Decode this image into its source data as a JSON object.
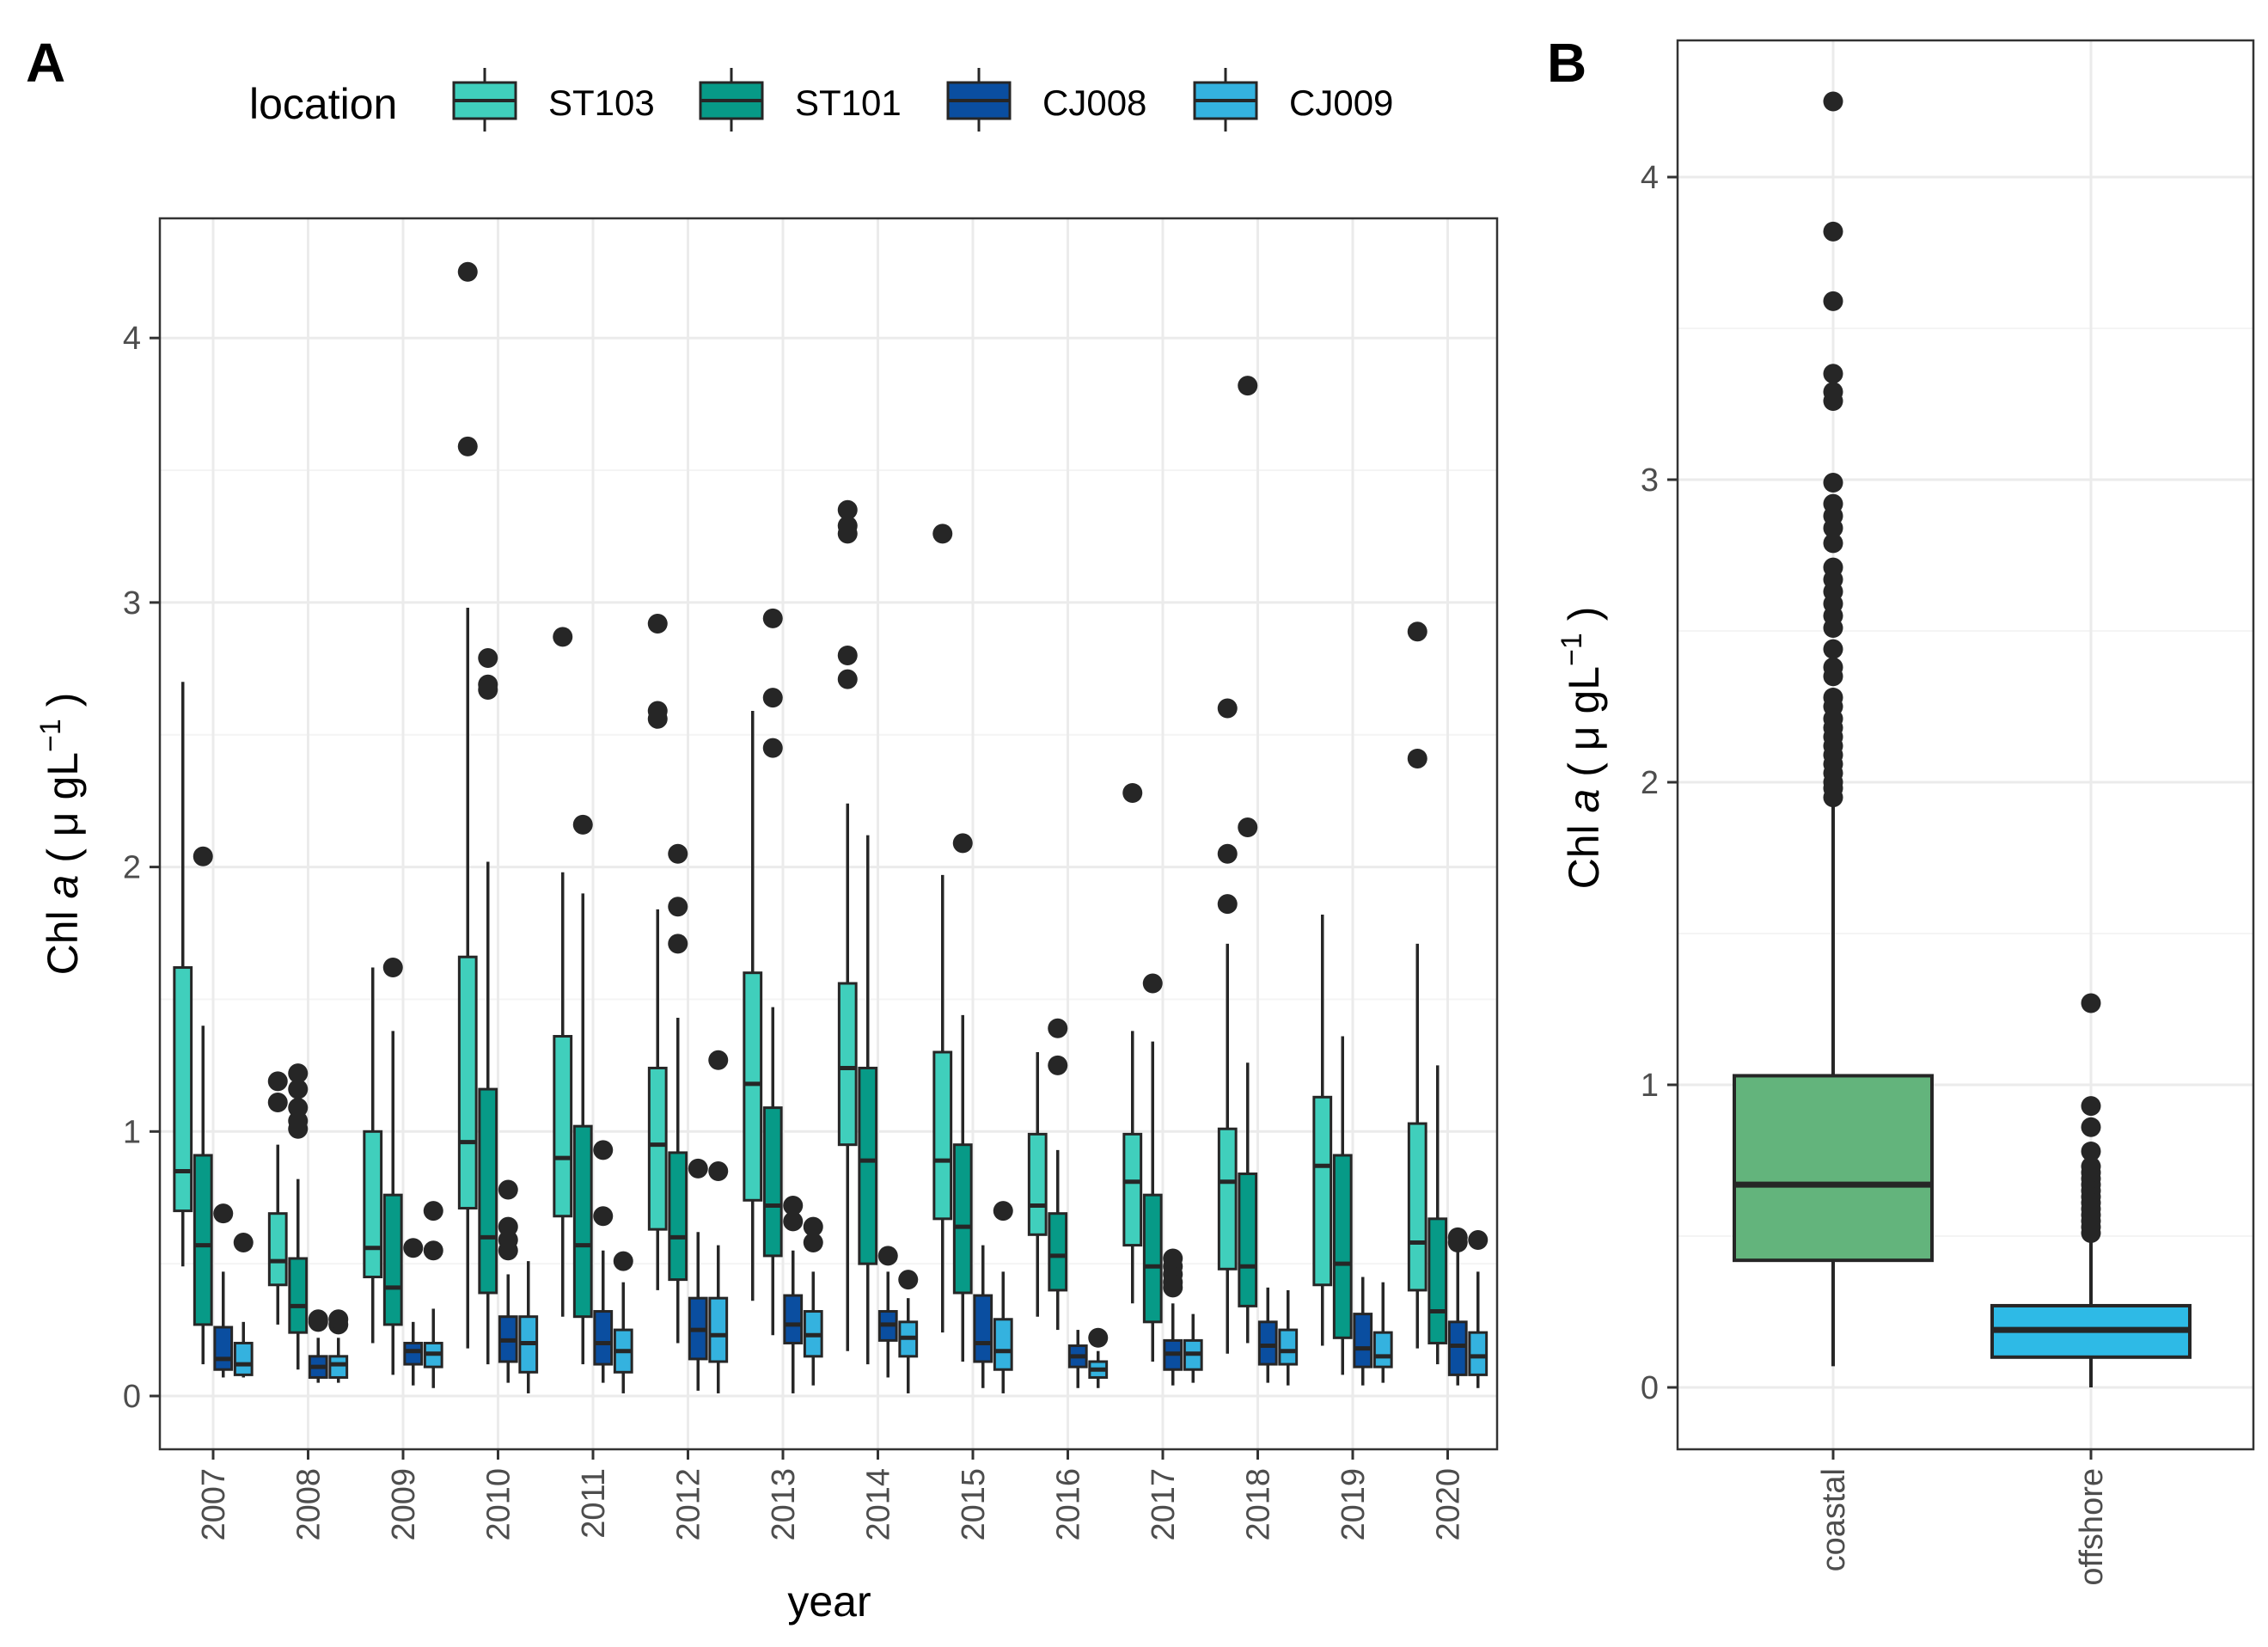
{
  "panels": {
    "a": {
      "letter": "A"
    },
    "b": {
      "letter": "B"
    }
  },
  "legend": {
    "title": "location",
    "entries": [
      {
        "label": "ST103",
        "color": "#40CFBC"
      },
      {
        "label": "ST101",
        "color": "#079A87"
      },
      {
        "label": "CJ008",
        "color": "#0A4EA0"
      },
      {
        "label": "CJ009",
        "color": "#34B2DF"
      }
    ]
  },
  "colors": {
    "outline": "#262626",
    "point": "#262626",
    "grid_major": "#EBEBEB",
    "grid_minor": "#F4F4F4",
    "coastal": "#63B47C",
    "offshore": "#2EBAE6"
  },
  "chart_data": [
    {
      "type": "boxplot",
      "panel": "A",
      "xlabel": "year",
      "ylabel_prefix": "Chl ",
      "ylabel_italic": "a",
      "ylabel_suffix": " ( μ gL",
      "ylabel_sup": "−1",
      "ylabel_close": " )",
      "ylim": [
        -0.2,
        4.45
      ],
      "y_ticks": [
        "0",
        "1",
        "2",
        "3",
        "4"
      ],
      "categories": [
        "2007",
        "2008",
        "2009",
        "2010",
        "2011",
        "2012",
        "2013",
        "2014",
        "2015",
        "2016",
        "2017",
        "2018",
        "2019",
        "2020"
      ],
      "series_order": [
        "ST103",
        "ST101",
        "CJ008",
        "CJ009"
      ],
      "boxes": [
        [
          {
            "series": "ST103",
            "min": 0.49,
            "q1": 0.7,
            "median": 0.85,
            "q3": 1.62,
            "max": 2.7,
            "outliers": []
          },
          {
            "series": "ST101",
            "min": 0.12,
            "q1": 0.27,
            "median": 0.57,
            "q3": 0.91,
            "max": 1.4,
            "outliers": [
              2.04
            ]
          },
          {
            "series": "CJ008",
            "min": 0.07,
            "q1": 0.1,
            "median": 0.14,
            "q3": 0.26,
            "max": 0.47,
            "outliers": [
              0.69
            ]
          },
          {
            "series": "CJ009",
            "min": 0.07,
            "q1": 0.08,
            "median": 0.12,
            "q3": 0.2,
            "max": 0.28,
            "outliers": [
              0.58
            ]
          }
        ],
        [
          {
            "series": "ST103",
            "min": 0.27,
            "q1": 0.42,
            "median": 0.51,
            "q3": 0.69,
            "max": 0.95,
            "outliers": [
              1.11,
              1.19
            ]
          },
          {
            "series": "ST101",
            "min": 0.1,
            "q1": 0.24,
            "median": 0.34,
            "q3": 0.52,
            "max": 0.82,
            "outliers": [
              1.01,
              1.04,
              1.09,
              1.16,
              1.22
            ]
          },
          {
            "series": "CJ008",
            "min": 0.05,
            "q1": 0.07,
            "median": 0.11,
            "q3": 0.15,
            "max": 0.22,
            "outliers": [
              0.28,
              0.29
            ]
          },
          {
            "series": "CJ009",
            "min": 0.05,
            "q1": 0.07,
            "median": 0.12,
            "q3": 0.15,
            "max": 0.22,
            "outliers": [
              0.27,
              0.29
            ]
          }
        ],
        [
          {
            "series": "ST103",
            "min": 0.2,
            "q1": 0.45,
            "median": 0.56,
            "q3": 1.0,
            "max": 1.62,
            "outliers": []
          },
          {
            "series": "ST101",
            "min": 0.08,
            "q1": 0.27,
            "median": 0.41,
            "q3": 0.76,
            "max": 1.38,
            "outliers": [
              1.62
            ]
          },
          {
            "series": "CJ008",
            "min": 0.04,
            "q1": 0.12,
            "median": 0.17,
            "q3": 0.2,
            "max": 0.28,
            "outliers": [
              0.56
            ]
          },
          {
            "series": "CJ009",
            "min": 0.03,
            "q1": 0.11,
            "median": 0.16,
            "q3": 0.2,
            "max": 0.33,
            "outliers": [
              0.55,
              0.7
            ]
          }
        ],
        [
          {
            "series": "ST103",
            "min": 0.18,
            "q1": 0.71,
            "median": 0.96,
            "q3": 1.66,
            "max": 2.98,
            "outliers": [
              3.59,
              4.25
            ]
          },
          {
            "series": "ST101",
            "min": 0.12,
            "q1": 0.39,
            "median": 0.6,
            "q3": 1.16,
            "max": 2.02,
            "outliers": [
              2.67,
              2.69,
              2.79
            ]
          },
          {
            "series": "CJ008",
            "min": 0.05,
            "q1": 0.13,
            "median": 0.21,
            "q3": 0.3,
            "max": 0.46,
            "outliers": [
              0.55,
              0.59,
              0.64,
              0.78
            ]
          },
          {
            "series": "CJ009",
            "min": 0.01,
            "q1": 0.09,
            "median": 0.2,
            "q3": 0.3,
            "max": 0.51,
            "outliers": []
          }
        ],
        [
          {
            "series": "ST103",
            "min": 0.3,
            "q1": 0.68,
            "median": 0.9,
            "q3": 1.36,
            "max": 1.98,
            "outliers": [
              2.87
            ]
          },
          {
            "series": "ST101",
            "min": 0.12,
            "q1": 0.3,
            "median": 0.57,
            "q3": 1.02,
            "max": 1.9,
            "outliers": [
              2.16
            ]
          },
          {
            "series": "CJ008",
            "min": 0.05,
            "q1": 0.12,
            "median": 0.2,
            "q3": 0.32,
            "max": 0.55,
            "outliers": [
              0.68,
              0.93
            ]
          },
          {
            "series": "CJ009",
            "min": 0.01,
            "q1": 0.09,
            "median": 0.17,
            "q3": 0.25,
            "max": 0.43,
            "outliers": [
              0.51
            ]
          }
        ],
        [
          {
            "series": "ST103",
            "min": 0.4,
            "q1": 0.63,
            "median": 0.95,
            "q3": 1.24,
            "max": 1.84,
            "outliers": [
              2.56,
              2.59,
              2.92
            ]
          },
          {
            "series": "ST101",
            "min": 0.2,
            "q1": 0.44,
            "median": 0.6,
            "q3": 0.92,
            "max": 1.43,
            "outliers": [
              1.71,
              1.85,
              2.05
            ]
          },
          {
            "series": "CJ008",
            "min": 0.02,
            "q1": 0.14,
            "median": 0.25,
            "q3": 0.37,
            "max": 0.62,
            "outliers": [
              0.86
            ]
          },
          {
            "series": "CJ009",
            "min": 0.01,
            "q1": 0.13,
            "median": 0.23,
            "q3": 0.37,
            "max": 0.57,
            "outliers": [
              0.85,
              1.27
            ]
          }
        ],
        [
          {
            "series": "ST103",
            "min": 0.36,
            "q1": 0.74,
            "median": 1.18,
            "q3": 1.6,
            "max": 2.59,
            "outliers": []
          },
          {
            "series": "ST101",
            "min": 0.23,
            "q1": 0.53,
            "median": 0.72,
            "q3": 1.09,
            "max": 1.47,
            "outliers": [
              2.45,
              2.64,
              2.94
            ]
          },
          {
            "series": "CJ008",
            "min": 0.01,
            "q1": 0.2,
            "median": 0.27,
            "q3": 0.38,
            "max": 0.55,
            "outliers": [
              0.66,
              0.72
            ]
          },
          {
            "series": "CJ009",
            "min": 0.04,
            "q1": 0.15,
            "median": 0.23,
            "q3": 0.32,
            "max": 0.47,
            "outliers": [
              0.58,
              0.64
            ]
          }
        ],
        [
          {
            "series": "ST103",
            "min": 0.17,
            "q1": 0.95,
            "median": 1.24,
            "q3": 1.56,
            "max": 2.24,
            "outliers": [
              2.71,
              2.8,
              3.26,
              3.29,
              3.35
            ]
          },
          {
            "series": "ST101",
            "min": 0.12,
            "q1": 0.5,
            "median": 0.89,
            "q3": 1.24,
            "max": 2.12,
            "outliers": []
          },
          {
            "series": "CJ008",
            "min": 0.07,
            "q1": 0.21,
            "median": 0.27,
            "q3": 0.32,
            "max": 0.47,
            "outliers": [
              0.53
            ]
          },
          {
            "series": "CJ009",
            "min": 0.01,
            "q1": 0.15,
            "median": 0.22,
            "q3": 0.28,
            "max": 0.37,
            "outliers": [
              0.44
            ]
          }
        ],
        [
          {
            "series": "ST103",
            "min": 0.24,
            "q1": 0.67,
            "median": 0.89,
            "q3": 1.3,
            "max": 1.97,
            "outliers": [
              3.26
            ]
          },
          {
            "series": "ST101",
            "min": 0.13,
            "q1": 0.39,
            "median": 0.64,
            "q3": 0.95,
            "max": 1.44,
            "outliers": [
              2.09
            ]
          },
          {
            "series": "CJ008",
            "min": 0.03,
            "q1": 0.13,
            "median": 0.2,
            "q3": 0.38,
            "max": 0.57,
            "outliers": []
          },
          {
            "series": "CJ009",
            "min": 0.01,
            "q1": 0.1,
            "median": 0.17,
            "q3": 0.29,
            "max": 0.47,
            "outliers": [
              0.7
            ]
          }
        ],
        [
          {
            "series": "ST103",
            "min": 0.3,
            "q1": 0.61,
            "median": 0.72,
            "q3": 0.99,
            "max": 1.3,
            "outliers": []
          },
          {
            "series": "ST101",
            "min": 0.25,
            "q1": 0.4,
            "median": 0.53,
            "q3": 0.69,
            "max": 0.93,
            "outliers": [
              1.25,
              1.39
            ]
          },
          {
            "series": "CJ008",
            "min": 0.03,
            "q1": 0.11,
            "median": 0.15,
            "q3": 0.19,
            "max": 0.25,
            "outliers": []
          },
          {
            "series": "CJ009",
            "min": 0.03,
            "q1": 0.07,
            "median": 0.1,
            "q3": 0.13,
            "max": 0.17,
            "outliers": [
              0.22
            ]
          }
        ],
        [
          {
            "series": "ST103",
            "min": 0.35,
            "q1": 0.57,
            "median": 0.81,
            "q3": 0.99,
            "max": 1.38,
            "outliers": [
              2.28
            ]
          },
          {
            "series": "ST101",
            "min": 0.13,
            "q1": 0.28,
            "median": 0.49,
            "q3": 0.76,
            "max": 1.34,
            "outliers": [
              1.56
            ]
          },
          {
            "series": "CJ008",
            "min": 0.04,
            "q1": 0.1,
            "median": 0.16,
            "q3": 0.21,
            "max": 0.35,
            "outliers": [
              0.41,
              0.43,
              0.46,
              0.49,
              0.52
            ]
          },
          {
            "series": "CJ009",
            "min": 0.05,
            "q1": 0.1,
            "median": 0.16,
            "q3": 0.21,
            "max": 0.31,
            "outliers": []
          }
        ],
        [
          {
            "series": "ST103",
            "min": 0.16,
            "q1": 0.48,
            "median": 0.81,
            "q3": 1.01,
            "max": 1.71,
            "outliers": [
              1.86,
              2.05,
              2.6
            ]
          },
          {
            "series": "ST101",
            "min": 0.2,
            "q1": 0.34,
            "median": 0.49,
            "q3": 0.84,
            "max": 1.26,
            "outliers": [
              2.15,
              3.82
            ]
          },
          {
            "series": "CJ008",
            "min": 0.05,
            "q1": 0.12,
            "median": 0.19,
            "q3": 0.28,
            "max": 0.41,
            "outliers": []
          },
          {
            "series": "CJ009",
            "min": 0.04,
            "q1": 0.12,
            "median": 0.17,
            "q3": 0.25,
            "max": 0.4,
            "outliers": []
          }
        ],
        [
          {
            "series": "ST103",
            "min": 0.19,
            "q1": 0.42,
            "median": 0.87,
            "q3": 1.13,
            "max": 1.82,
            "outliers": []
          },
          {
            "series": "ST101",
            "min": 0.08,
            "q1": 0.22,
            "median": 0.5,
            "q3": 0.91,
            "max": 1.36,
            "outliers": []
          },
          {
            "series": "CJ008",
            "min": 0.04,
            "q1": 0.11,
            "median": 0.18,
            "q3": 0.31,
            "max": 0.45,
            "outliers": []
          },
          {
            "series": "CJ009",
            "min": 0.05,
            "q1": 0.11,
            "median": 0.15,
            "q3": 0.24,
            "max": 0.43,
            "outliers": []
          }
        ],
        [
          {
            "series": "ST103",
            "min": 0.18,
            "q1": 0.4,
            "median": 0.58,
            "q3": 1.03,
            "max": 1.71,
            "outliers": [
              2.41,
              2.89
            ]
          },
          {
            "series": "ST101",
            "min": 0.12,
            "q1": 0.2,
            "median": 0.32,
            "q3": 0.67,
            "max": 1.25,
            "outliers": []
          },
          {
            "series": "CJ008",
            "min": 0.04,
            "q1": 0.08,
            "median": 0.19,
            "q3": 0.28,
            "max": 0.55,
            "outliers": [
              0.58,
              0.6
            ]
          },
          {
            "series": "CJ009",
            "min": 0.03,
            "q1": 0.08,
            "median": 0.15,
            "q3": 0.24,
            "max": 0.47,
            "outliers": [
              0.59
            ]
          }
        ]
      ]
    },
    {
      "type": "boxplot",
      "panel": "B",
      "xlabel": "",
      "ylabel_prefix": "Chl ",
      "ylabel_italic": "a",
      "ylabel_suffix": " ( μ gL",
      "ylabel_sup": "−1",
      "ylabel_close": " )",
      "ylim": [
        -0.2,
        4.45
      ],
      "y_ticks": [
        "0",
        "1",
        "2",
        "3",
        "4"
      ],
      "categories": [
        "coastal",
        "offshore"
      ],
      "boxes": [
        {
          "category": "coastal",
          "min": 0.07,
          "q1": 0.42,
          "median": 0.67,
          "q3": 1.03,
          "max": 1.94,
          "outliers": [
            1.95,
            1.98,
            2.0,
            2.03,
            2.06,
            2.09,
            2.12,
            2.15,
            2.18,
            2.21,
            2.25,
            2.28,
            2.35,
            2.38,
            2.44,
            2.51,
            2.55,
            2.59,
            2.63,
            2.67,
            2.71,
            2.79,
            2.84,
            2.88,
            2.92,
            2.99,
            3.26,
            3.29,
            3.35,
            3.59,
            3.82,
            4.25
          ]
        },
        {
          "category": "offshore",
          "min": 0.0,
          "q1": 0.1,
          "median": 0.19,
          "q3": 0.27,
          "max": 0.5,
          "outliers": [
            0.51,
            0.53,
            0.55,
            0.57,
            0.59,
            0.61,
            0.63,
            0.65,
            0.67,
            0.69,
            0.71,
            0.73,
            0.78,
            0.86,
            0.93,
            1.27
          ]
        }
      ]
    }
  ]
}
